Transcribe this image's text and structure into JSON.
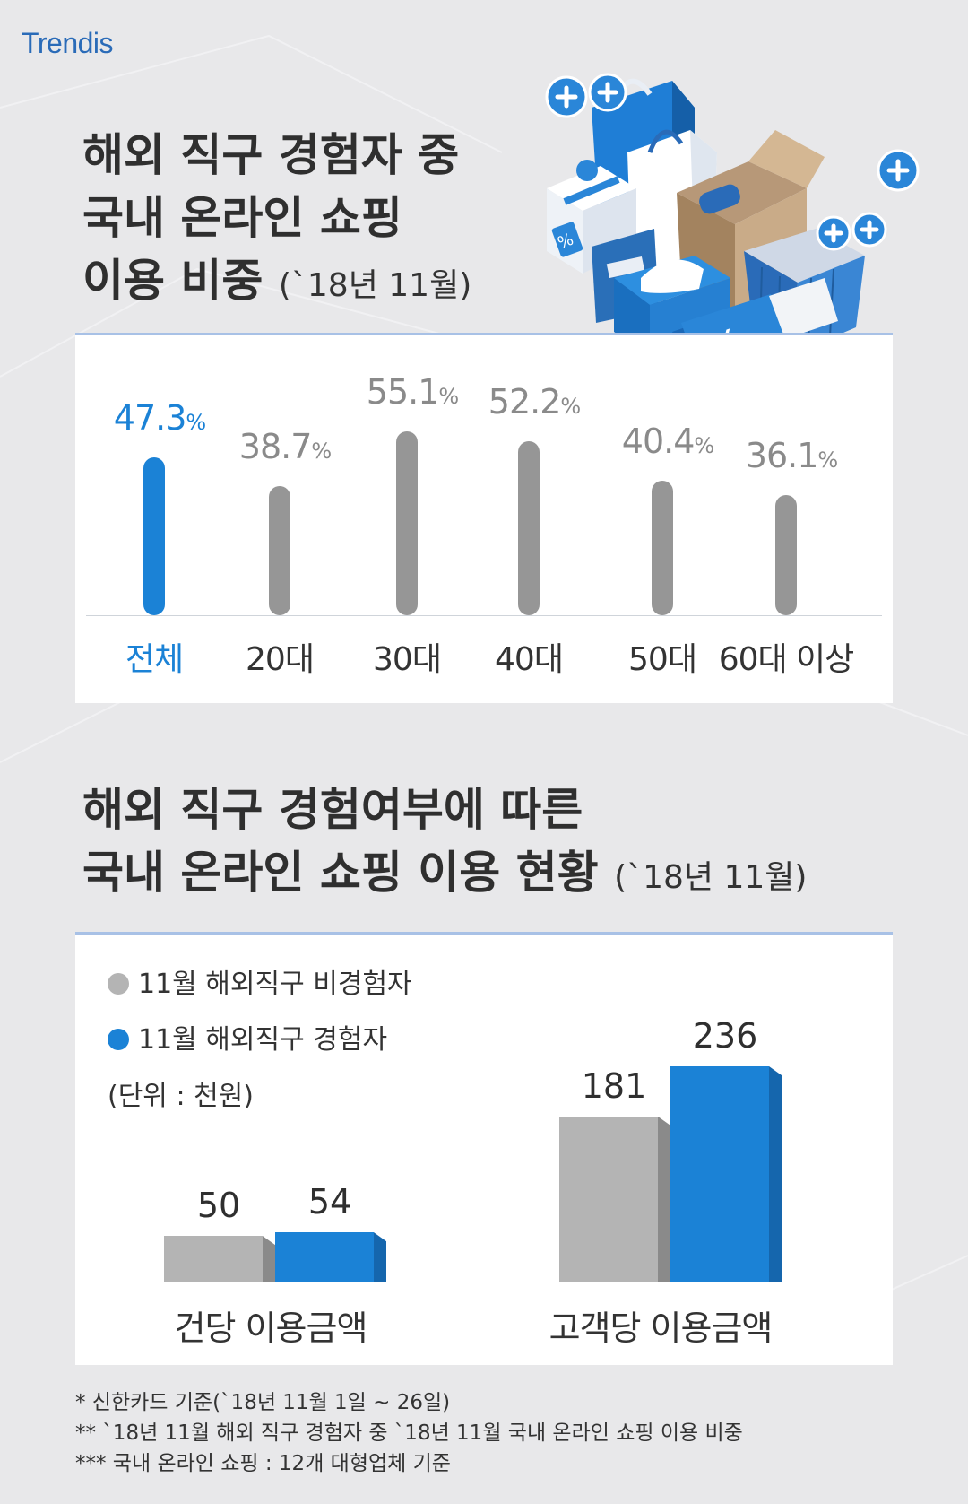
{
  "brand": {
    "logo": "Trendis"
  },
  "section1": {
    "title_lines": [
      "해외 직구 경험자 중",
      "국내 온라인 쇼핑",
      "이용 비중"
    ],
    "title_note": "(`18년 11월)"
  },
  "section2": {
    "title_lines": [
      "해외 직구 경험여부에 따른",
      "국내 온라인 쇼핑 이용 현황"
    ],
    "title_note": "(`18년 11월)",
    "legend": [
      "11월 해외직구 비경험자",
      "11월 해외직구 경험자"
    ],
    "unit": "(단위 : 천원)"
  },
  "colors": {
    "highlight": "#1b82d6",
    "gray": "#969696",
    "gray_light": "#b4b4b4",
    "gray_side": "#8a8a8a",
    "blue_side": "#1566ad"
  },
  "chart_data": [
    {
      "type": "bar",
      "categories": [
        "전체",
        "20대",
        "30대",
        "40대",
        "50대",
        "60대 이상"
      ],
      "values": [
        47.3,
        38.7,
        55.1,
        52.2,
        40.4,
        36.1
      ],
      "value_labels": [
        "47.3",
        "38.7",
        "55.1",
        "52.2",
        "40.4",
        "36.1"
      ],
      "unit_suffix": "%",
      "highlight_index": 0,
      "ylim": [
        0,
        60
      ]
    },
    {
      "type": "bar",
      "categories": [
        "건당 이용금액",
        "고객당 이용금액"
      ],
      "series": [
        {
          "name": "11월 해외직구 비경험자",
          "values": [
            50,
            181
          ]
        },
        {
          "name": "11월 해외직구 경험자",
          "values": [
            54,
            236
          ]
        }
      ],
      "ylim": [
        0,
        260
      ]
    }
  ],
  "footnotes": [
    "* 신한카드 기준(`18년 11월 1일 ~ 26일)",
    "** `18년 11월 해외 직구 경험자 중 `18년 11월 국내 온라인 쇼핑 이용 비중",
    "*** 국내 온라인 쇼핑 : 12개 대형업체 기준"
  ]
}
